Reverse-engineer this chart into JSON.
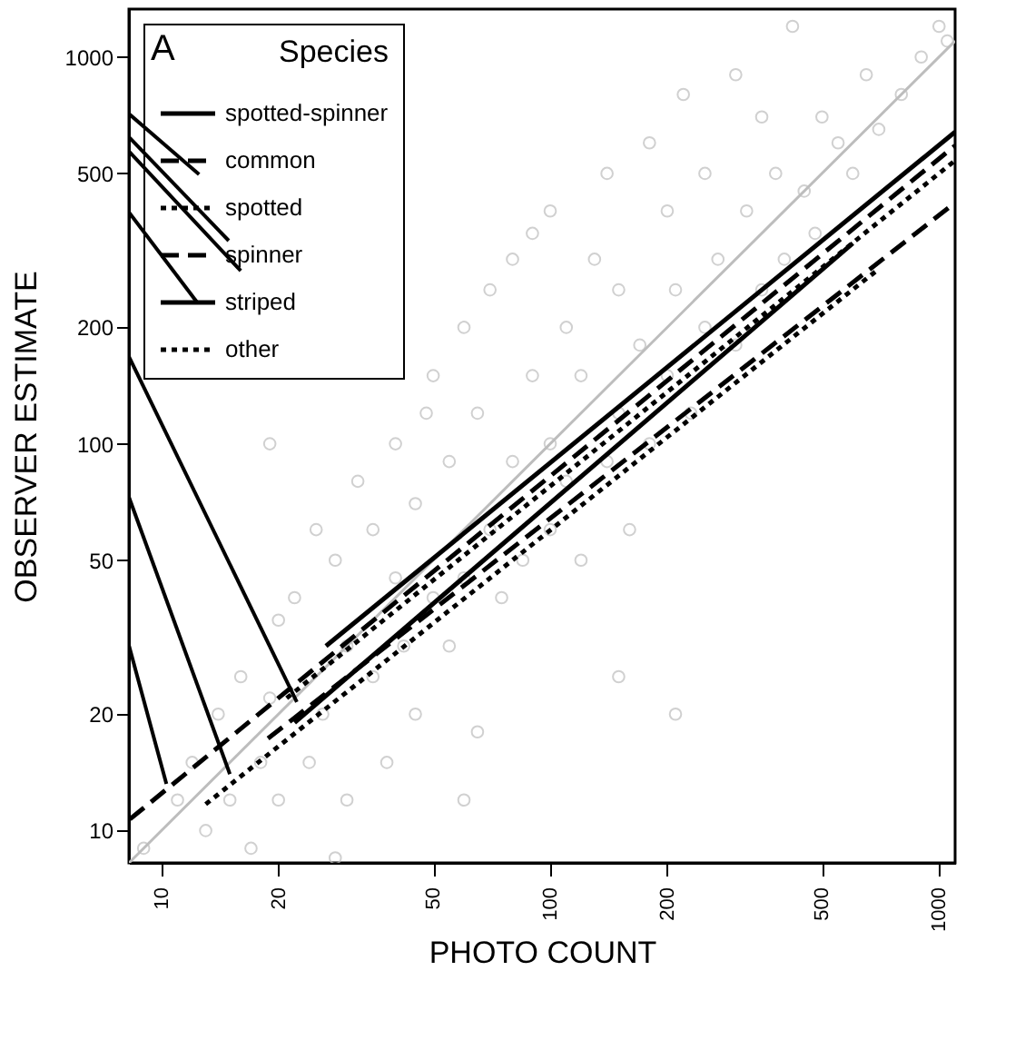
{
  "chart_data": {
    "type": "scatter",
    "xlabel": "PHOTO COUNT",
    "ylabel": "OBSERVER ESTIMATE",
    "legend_title": "Species",
    "annotations": [
      "A"
    ],
    "log": "xy",
    "xlim": [
      8.25,
      1100
    ],
    "ylim": [
      8.25,
      1330
    ],
    "xticks": [
      10,
      20,
      50,
      100,
      200,
      500,
      1000
    ],
    "yticks": [
      10,
      20,
      50,
      100,
      200,
      500,
      1000
    ],
    "grid": false,
    "legend": "top left",
    "series": [
      {
        "marker": "circle",
        "color": "#bdbdbd",
        "x": [
          9,
          11,
          12,
          13,
          14,
          15,
          16,
          17,
          18,
          19,
          20,
          20,
          22,
          24,
          25,
          26,
          28,
          30,
          30,
          32,
          35,
          35,
          38,
          40,
          40,
          42,
          45,
          45,
          48,
          50,
          50,
          55,
          55,
          60,
          60,
          65,
          65,
          70,
          70,
          75,
          80,
          80,
          85,
          90,
          90,
          100,
          100,
          100,
          110,
          110,
          120,
          120,
          130,
          140,
          140,
          150,
          150,
          160,
          170,
          180,
          180,
          200,
          200,
          210,
          220,
          230,
          250,
          250,
          270,
          300,
          300,
          320,
          350,
          350,
          380,
          400,
          420,
          450,
          480,
          500,
          550,
          600,
          650,
          700,
          800,
          900,
          1000,
          1050,
          19,
          28,
          60,
          150,
          210
        ],
        "values": [
          9,
          12,
          15,
          10,
          20,
          12,
          25,
          9,
          15,
          22,
          12,
          35,
          40,
          15,
          60,
          20,
          50,
          12,
          30,
          80,
          25,
          60,
          15,
          45,
          100,
          30,
          20,
          70,
          120,
          40,
          150,
          30,
          90,
          45,
          200,
          18,
          120,
          60,
          250,
          40,
          90,
          300,
          50,
          150,
          350,
          60,
          100,
          400,
          80,
          200,
          50,
          150,
          300,
          90,
          500,
          120,
          250,
          60,
          180,
          100,
          600,
          150,
          400,
          250,
          800,
          120,
          200,
          500,
          300,
          180,
          900,
          400,
          250,
          700,
          500,
          300,
          1200,
          450,
          350,
          700,
          600,
          500,
          900,
          650,
          800,
          1000,
          1200,
          1100,
          100,
          8.5,
          12,
          25,
          20
        ]
      },
      {
        "type": "line",
        "color": "#bdbdbd",
        "x": [
          8.25,
          1100
        ],
        "values": [
          8.25,
          1100
        ]
      },
      {
        "type": "line",
        "color": "#000000",
        "x": [
          8.25,
          12.5
        ],
        "values": [
          713,
          497
        ]
      },
      {
        "type": "line",
        "color": "#000000",
        "x": [
          8.25,
          14.9
        ],
        "values": [
          621,
          335
        ]
      },
      {
        "type": "line",
        "color": "#000000",
        "x": [
          8.25,
          16.0
        ],
        "values": [
          570,
          280
        ]
      },
      {
        "type": "line",
        "color": "#000000",
        "x": [
          8.25,
          12.4
        ],
        "values": [
          397,
          231
        ]
      },
      {
        "type": "line",
        "color": "#000000",
        "x": [
          8.25,
          22.3
        ],
        "values": [
          168,
          21.5
        ]
      },
      {
        "type": "line",
        "color": "#000000",
        "x": [
          8.25,
          15.0
        ],
        "values": [
          72.8,
          14.0
        ]
      },
      {
        "type": "line",
        "color": "#000000",
        "x": [
          8.25,
          10.3
        ],
        "values": [
          30.1,
          13.2
        ]
      },
      {
        "type": "line",
        "name": "spotted-spinner",
        "color": "#000000",
        "line_style": "solid",
        "x": [
          26.5,
          1100
        ],
        "values": [
          30,
          640
        ]
      },
      {
        "type": "line",
        "name": "common",
        "color": "#000000",
        "line_style": "dashed",
        "x": [
          8.3,
          1100
        ],
        "values": [
          10.7,
          590
        ]
      },
      {
        "type": "line",
        "name": "spotted",
        "color": "#000000",
        "line_style": "dotted",
        "x": [
          13,
          690
        ],
        "values": [
          11.7,
          280
        ]
      },
      {
        "type": "line",
        "name": "spinner",
        "color": "#000000",
        "line_style": "dashed",
        "x": [
          18.8,
          1100
        ],
        "values": [
          17.3,
          420
        ]
      },
      {
        "type": "line",
        "name": "striped",
        "color": "#000000",
        "line_style": "solid",
        "x": [
          22,
          600
        ],
        "values": [
          19,
          330
        ]
      },
      {
        "type": "line",
        "name": "other",
        "color": "#000000",
        "line_style": "dotted",
        "x": [
          21,
          1100
        ],
        "values": [
          22,
          540
        ]
      }
    ]
  }
}
